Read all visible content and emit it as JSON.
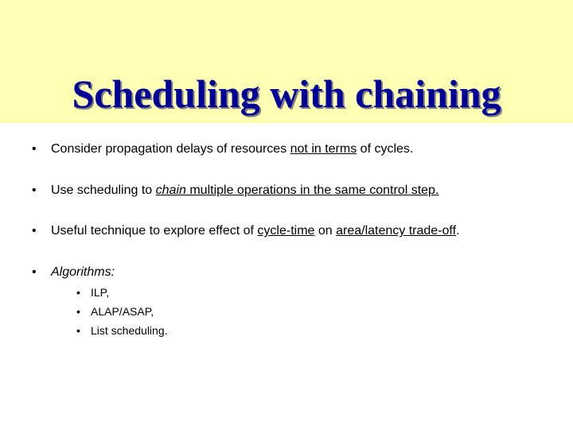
{
  "colors": {
    "header_bg": "#ffffb3",
    "title_color": "#000099",
    "title_shadow": "#808080",
    "body_bg": "#ffffff",
    "text": "#000000"
  },
  "typography": {
    "title_font": "Times New Roman",
    "title_size_pt": 38,
    "title_weight": "bold",
    "body_font": "Verdana",
    "bullet_size_pt": 12,
    "sub_bullet_size_pt": 10
  },
  "title": "Scheduling with chaining",
  "bullets": [
    {
      "pre": "Consider propagation delays of resources ",
      "under1": "not in terms",
      "post": " of cycles."
    },
    {
      "pre": "Use scheduling to ",
      "chain": "chain",
      "under2": " multiple operations in the same control step.",
      "post": ""
    },
    {
      "pre": "Useful technique to explore effect of ",
      "u_a": "cycle-time",
      "mid": " on ",
      "u_b": "area/latency trade-off",
      "post": "."
    },
    {
      "algo_label": "Algorithms:",
      "sub": [
        " ILP,",
        "ALAP/ASAP,",
        "List scheduling."
      ]
    }
  ]
}
